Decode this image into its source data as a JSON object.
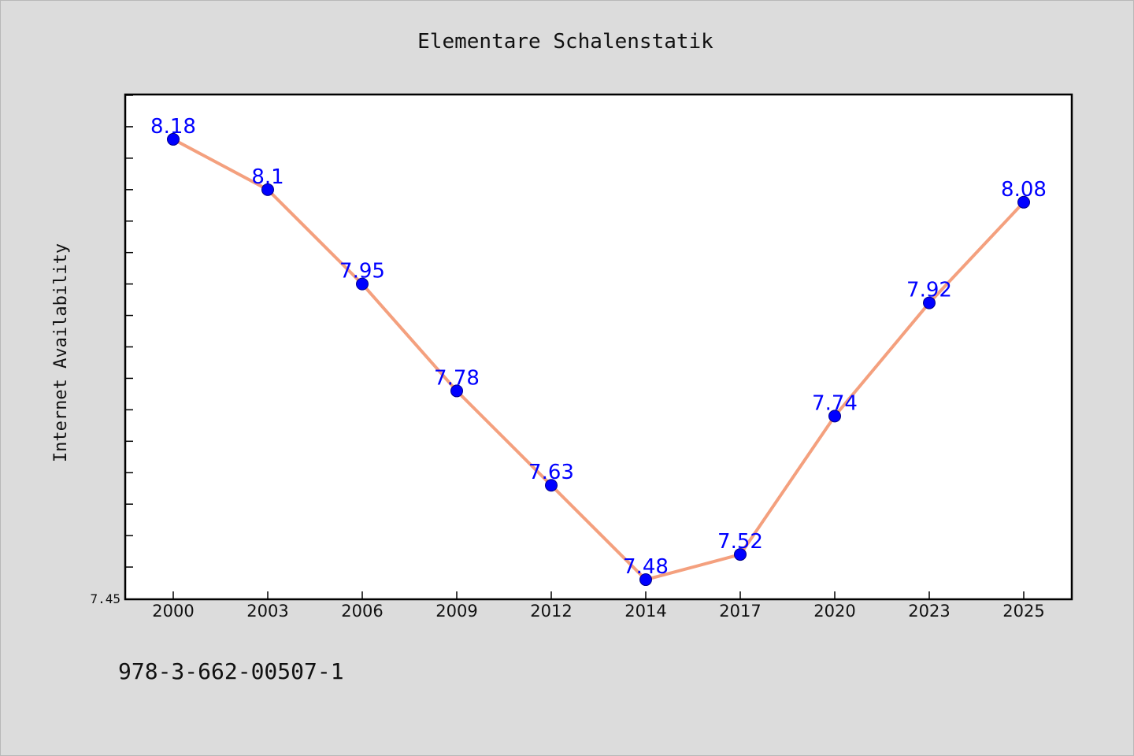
{
  "footer_text": "978-3-662-00507-1",
  "chart_data": {
    "type": "line",
    "title": "Elementare Schalenstatik",
    "xlabel": "",
    "ylabel": "Internet Availability",
    "categories": [
      "2000",
      "2003",
      "2006",
      "2009",
      "2012",
      "2014",
      "2017",
      "2020",
      "2023",
      "2025"
    ],
    "values": [
      8.18,
      8.1,
      7.95,
      7.78,
      7.63,
      7.48,
      7.52,
      7.74,
      7.92,
      8.08
    ],
    "data_labels": [
      "8.18",
      "8.1",
      "7.95",
      "7.78",
      "7.63",
      "7.48",
      "7.52",
      "7.74",
      "7.92",
      "8.08"
    ],
    "ylim": [
      7.45,
      8.25
    ],
    "ytick_labels": [
      "7.45"
    ],
    "grid": false,
    "legend": "none",
    "colors": {
      "line": "#f4a07e",
      "marker": "#0000ff",
      "data_label": "#0000ff",
      "plot_background": "#ffffff",
      "figure_background": "#dcdcdc"
    }
  }
}
